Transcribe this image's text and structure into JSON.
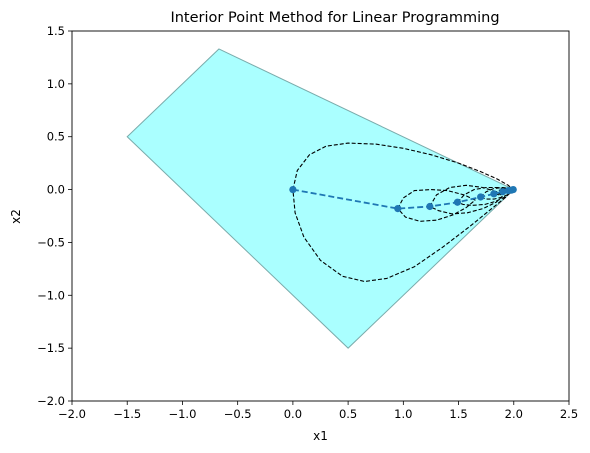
{
  "chart_data": {
    "type": "scatter",
    "title": "Interior Point Method for Linear Programming",
    "xlabel": "x1",
    "ylabel": "x2",
    "xlim": [
      -2.0,
      2.5
    ],
    "ylim": [
      -2.0,
      1.5
    ],
    "grid": false,
    "xticks": [
      -2.0,
      -1.5,
      -1.0,
      -0.5,
      0.0,
      0.5,
      1.0,
      1.5,
      2.0,
      2.5
    ],
    "yticks": [
      -2.0,
      -1.5,
      -1.0,
      -0.5,
      0.0,
      0.5,
      1.0,
      1.5
    ],
    "xtick_labels": [
      "−2.0",
      "−1.5",
      "−1.0",
      "−0.5",
      "0.0",
      "0.5",
      "1.0",
      "1.5",
      "2.0",
      "2.5"
    ],
    "ytick_labels": [
      "−2.0",
      "−1.5",
      "−1.0",
      "−0.5",
      "0.0",
      "0.5",
      "1.0",
      "1.5"
    ],
    "feasible_region": {
      "vertices": [
        [
          -0.67,
          1.33
        ],
        [
          2.0,
          0.0
        ],
        [
          0.5,
          -1.5
        ],
        [
          -1.5,
          0.5
        ]
      ],
      "fill_color": "#aaffff",
      "edge_color": "#7aabab"
    },
    "path": {
      "points": [
        [
          0.0,
          0.0
        ],
        [
          0.95,
          -0.18
        ],
        [
          1.24,
          -0.16
        ],
        [
          1.49,
          -0.12
        ],
        [
          1.7,
          -0.07
        ],
        [
          1.82,
          -0.04
        ],
        [
          1.9,
          -0.02
        ],
        [
          1.95,
          -0.01
        ],
        [
          1.98,
          -0.005
        ],
        [
          1.995,
          0.0
        ]
      ],
      "color": "#1f77b4",
      "linestyle": "dashed",
      "marker": "circle"
    },
    "ellipsoids": {
      "color": "#000000",
      "linestyle": "dashed",
      "curves": [
        [
          [
            0.0,
            0.0
          ],
          [
            0.04,
            0.18
          ],
          [
            0.15,
            0.33
          ],
          [
            0.3,
            0.41
          ],
          [
            0.5,
            0.44
          ],
          [
            0.75,
            0.43
          ],
          [
            1.0,
            0.39
          ],
          [
            1.25,
            0.33
          ],
          [
            1.5,
            0.25
          ],
          [
            1.7,
            0.17
          ],
          [
            1.85,
            0.1
          ],
          [
            1.95,
            0.04
          ],
          [
            1.99,
            0.0
          ],
          [
            1.93,
            -0.07
          ],
          [
            1.8,
            -0.18
          ],
          [
            1.6,
            -0.35
          ],
          [
            1.35,
            -0.55
          ],
          [
            1.1,
            -0.73
          ],
          [
            0.85,
            -0.84
          ],
          [
            0.65,
            -0.87
          ],
          [
            0.45,
            -0.82
          ],
          [
            0.25,
            -0.67
          ],
          [
            0.1,
            -0.45
          ],
          [
            0.02,
            -0.22
          ],
          [
            0.0,
            0.0
          ]
        ],
        [
          [
            0.95,
            -0.18
          ],
          [
            1.0,
            -0.08
          ],
          [
            1.1,
            -0.01
          ],
          [
            1.25,
            0.0
          ],
          [
            1.4,
            -0.01
          ],
          [
            1.55,
            -0.05
          ],
          [
            1.65,
            -0.1
          ],
          [
            1.57,
            -0.17
          ],
          [
            1.45,
            -0.24
          ],
          [
            1.3,
            -0.29
          ],
          [
            1.15,
            -0.3
          ],
          [
            1.02,
            -0.26
          ],
          [
            0.95,
            -0.18
          ]
        ],
        [
          [
            1.24,
            -0.16
          ],
          [
            1.3,
            -0.05
          ],
          [
            1.42,
            0.02
          ],
          [
            1.57,
            0.04
          ],
          [
            1.72,
            0.02
          ],
          [
            1.84,
            -0.02
          ],
          [
            1.9,
            -0.06
          ],
          [
            1.84,
            -0.12
          ],
          [
            1.72,
            -0.18
          ],
          [
            1.58,
            -0.22
          ],
          [
            1.44,
            -0.23
          ],
          [
            1.32,
            -0.2
          ],
          [
            1.24,
            -0.16
          ]
        ],
        [
          [
            1.49,
            -0.12
          ],
          [
            1.55,
            -0.05
          ],
          [
            1.64,
            0.0
          ],
          [
            1.75,
            0.02
          ],
          [
            1.86,
            0.02
          ],
          [
            1.94,
            0.0
          ],
          [
            1.97,
            -0.03
          ],
          [
            1.92,
            -0.07
          ],
          [
            1.84,
            -0.11
          ],
          [
            1.74,
            -0.14
          ],
          [
            1.62,
            -0.15
          ],
          [
            1.54,
            -0.14
          ],
          [
            1.49,
            -0.12
          ]
        ],
        [
          [
            1.7,
            -0.07
          ],
          [
            1.75,
            -0.02
          ],
          [
            1.82,
            0.01
          ],
          [
            1.9,
            0.02
          ],
          [
            1.96,
            0.01
          ],
          [
            1.99,
            -0.01
          ],
          [
            1.96,
            -0.04
          ],
          [
            1.9,
            -0.07
          ],
          [
            1.82,
            -0.09
          ],
          [
            1.75,
            -0.09
          ],
          [
            1.7,
            -0.07
          ]
        ],
        [
          [
            1.82,
            -0.04
          ],
          [
            1.86,
            -0.01
          ],
          [
            1.92,
            0.01
          ],
          [
            1.97,
            0.01
          ],
          [
            1.995,
            0.0
          ],
          [
            1.97,
            -0.02
          ],
          [
            1.92,
            -0.04
          ],
          [
            1.87,
            -0.05
          ],
          [
            1.82,
            -0.04
          ]
        ]
      ]
    }
  }
}
